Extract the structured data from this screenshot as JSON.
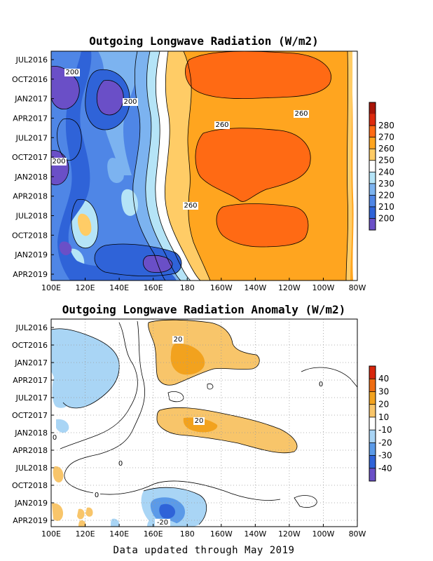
{
  "chart_data": [
    {
      "type": "heatmap",
      "title": "Outgoing Longwave Radiation (W/m2)",
      "x_ticks": [
        "100E",
        "120E",
        "140E",
        "160E",
        "180",
        "160W",
        "140W",
        "120W",
        "100W",
        "80W"
      ],
      "y_ticks": [
        "JUL2016",
        "OCT2016",
        "JAN2017",
        "APR2017",
        "JUL2017",
        "OCT2017",
        "JAN2018",
        "APR2018",
        "JUL2018",
        "OCT2018",
        "JAN2019",
        "APR2019"
      ],
      "colorbar_levels": [
        "200",
        "210",
        "220",
        "230",
        "240",
        "250",
        "260",
        "270",
        "280"
      ],
      "colors": [
        "#6a4fc7",
        "#2f63d8",
        "#4f86e6",
        "#7cb3f0",
        "#b5e4f7",
        "#ffffff",
        "#ffcc66",
        "#ffa51f",
        "#ff6a14",
        "#dd2a0d",
        "#a81508"
      ],
      "contour_labels": [
        "200",
        "200",
        "200",
        "260",
        "260",
        "260"
      ],
      "grid": false,
      "legend": "colorbar right"
    },
    {
      "type": "heatmap",
      "title": "Outgoing Longwave Radiation Anomaly (W/m2)",
      "x_ticks": [
        "100E",
        "120E",
        "140E",
        "160E",
        "180",
        "160W",
        "140W",
        "120W",
        "100W",
        "80W"
      ],
      "y_ticks": [
        "JUL2016",
        "OCT2016",
        "JAN2017",
        "APR2017",
        "JUL2017",
        "OCT2017",
        "JAN2018",
        "APR2018",
        "JUL2018",
        "OCT2018",
        "JAN2019",
        "APR2019"
      ],
      "colorbar_levels": [
        "-40",
        "-30",
        "-20",
        "-10",
        "10",
        "20",
        "30",
        "40"
      ],
      "colors": [
        "#6a4fc7",
        "#2f63d8",
        "#5b9ae8",
        "#a9d5f5",
        "#ffffff",
        "#f8c56a",
        "#f2a21e",
        "#ee6c12",
        "#d8260c"
      ],
      "contour_labels": [
        "20",
        "20",
        "0",
        "0",
        "0",
        "0",
        "-20"
      ],
      "grid": true,
      "legend": "colorbar right"
    }
  ],
  "footer": "Data updated through May 2019"
}
